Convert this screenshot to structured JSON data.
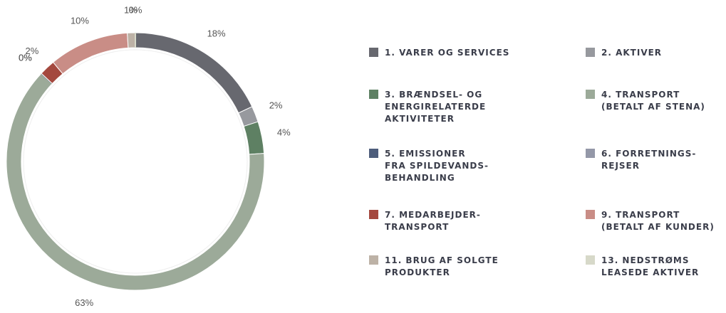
{
  "chart_data": {
    "type": "donut",
    "categories": [
      "1. VARER OG SERVICES",
      "2. AKTIVER",
      "3. BRÆNDSEL- OG\nENERGIRELATERDE\nAKTIVITETER",
      "4. TRANSPORT\n(BETALT AF STENA)",
      "5. EMISSIONER\nFRA SPILDEVANDS-\nBEHANDLING",
      "6. FORRETNINGS-\nREJSER",
      "7. MEDARBEJDER-\nTRANSPORT",
      "9. TRANSPORT\n(BETALT AF KUNDER)",
      "11. BRUG AF SOLGTE\nPRODUKTER",
      "13. NEDSTRØMS\nLEASEDE AKTIVER"
    ],
    "values": [
      18,
      2,
      4,
      63,
      0,
      0,
      2,
      10,
      1,
      0
    ],
    "value_labels": [
      "18%",
      "2%",
      "4%",
      "63%",
      "0%",
      "0%",
      "2%",
      "10%",
      "1%",
      "0%"
    ],
    "colors": [
      "#67686f",
      "#97999e",
      "#5e8063",
      "#9caa99",
      "#4d5d7b",
      "#9498a8",
      "#a4483e",
      "#c98d86",
      "#bdb2a6",
      "#d7d9c9"
    ]
  }
}
